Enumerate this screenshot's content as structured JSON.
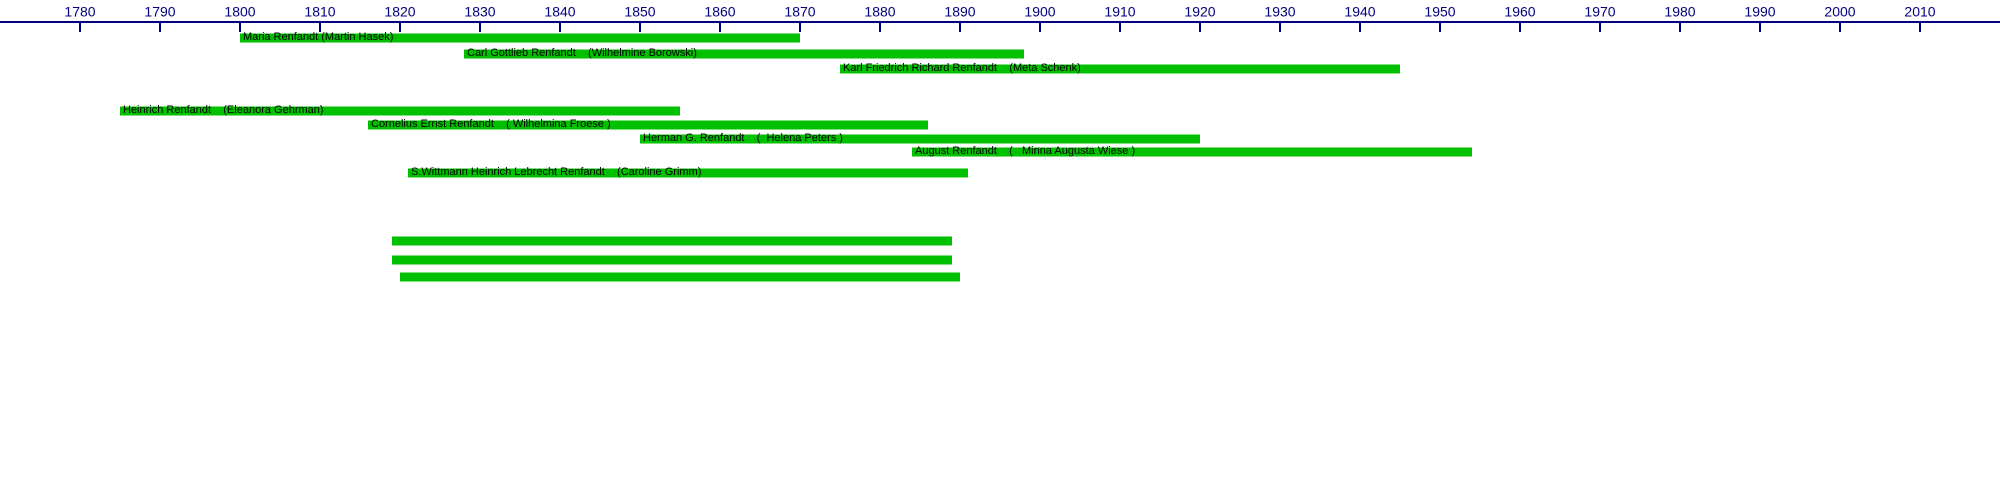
{
  "chart_data": {
    "type": "timeline",
    "xlim": [
      1770,
      2020
    ],
    "xticks": [
      1780,
      1790,
      1800,
      1810,
      1820,
      1830,
      1840,
      1850,
      1860,
      1870,
      1880,
      1890,
      1900,
      1910,
      1920,
      1930,
      1940,
      1950,
      1960,
      1970,
      1980,
      1990,
      2000,
      2010
    ],
    "color": "#00c000",
    "axis_color": "#000080",
    "series": [
      {
        "name": "Maria Renfandt (Martin Hasek)",
        "start": 1800,
        "end": 1870
      },
      {
        "name": "Carl Gottlieb Renfandt    (Wilhelmine Borowski)",
        "start": 1828,
        "end": 1898
      },
      {
        "name": "Karl Friedrich Richard Renfandt    (Meta Schenk)",
        "start": 1875,
        "end": 1945
      },
      {
        "name": "Heinrich Renfandt    (Eleanora Gehrman)",
        "start": 1785,
        "end": 1855
      },
      {
        "name": "Cornelius Ernst Renfandt    ( Wilhelmina Froese )",
        "start": 1816,
        "end": 1886
      },
      {
        "name": "Herman G. Renfandt    (  Helena Peters )",
        "start": 1850,
        "end": 1920
      },
      {
        "name": "August Renfandt    (   Minna Augusta Wiese )",
        "start": 1884,
        "end": 1954
      },
      {
        "name": "S.Wittmann Heinrich Lebrecht Renfandt    (Caroline Grimm)",
        "start": 1821,
        "end": 1891
      },
      {
        "name": null,
        "start": 1819,
        "end": 1889
      },
      {
        "name": null,
        "start": 1819,
        "end": 1889
      },
      {
        "name": null,
        "start": 1820,
        "end": 1890
      }
    ]
  }
}
